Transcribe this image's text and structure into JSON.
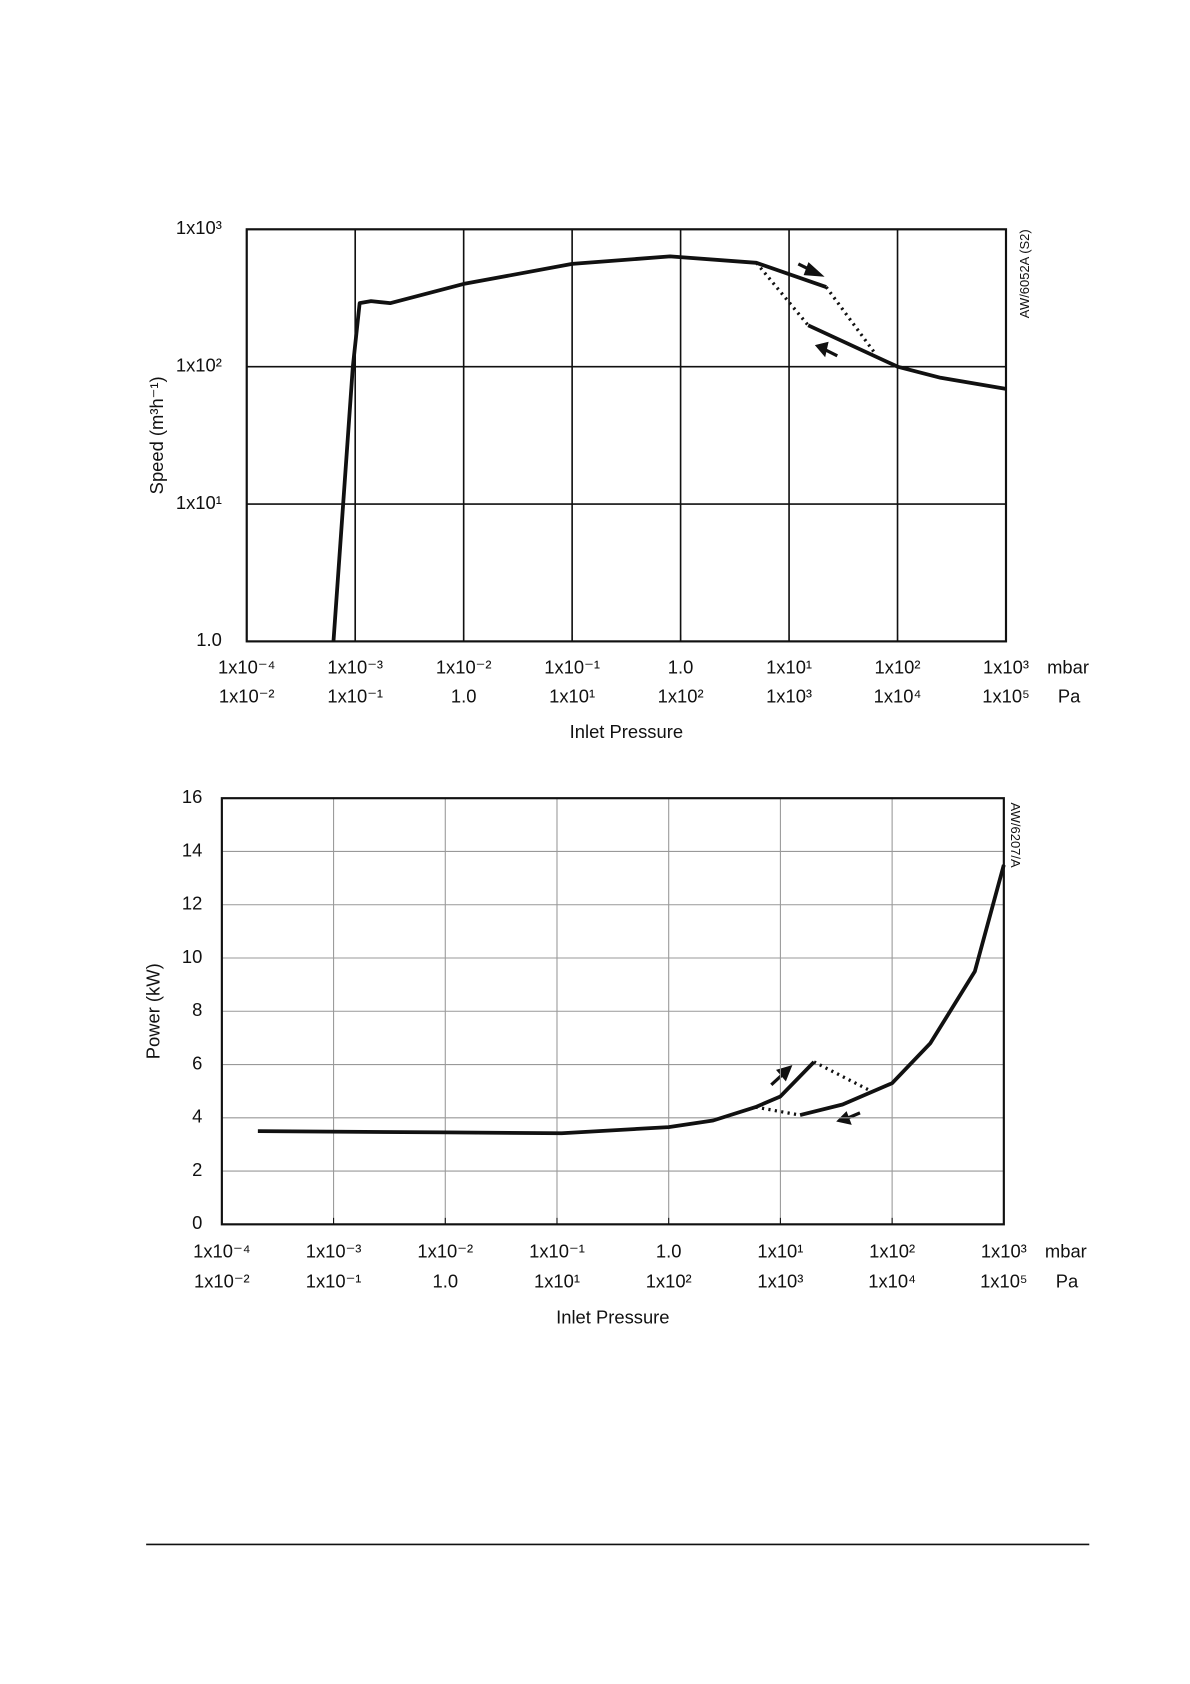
{
  "chart_data": [
    {
      "type": "line",
      "log_x": true,
      "log_y": true,
      "grid": true,
      "grid_color": "#111",
      "ylabel": "Speed (m³h⁻¹)",
      "xlabel": "Inlet Pressure",
      "annotation": "AW/6052A (S2)",
      "x_unit": "mbar",
      "x2_unit": "Pa",
      "xlim": [
        0.0001,
        1000
      ],
      "x2lim": [
        0.01,
        100000
      ],
      "ylim": [
        1,
        1000
      ],
      "xticks": [
        {
          "value": 0.0001,
          "label": "1x10⁻⁴"
        },
        {
          "value": 0.001,
          "label": "1x10⁻³"
        },
        {
          "value": 0.01,
          "label": "1x10⁻²"
        },
        {
          "value": 0.1,
          "label": "1x10⁻¹"
        },
        {
          "value": 1,
          "label": "1.0"
        },
        {
          "value": 10,
          "label": "1x10¹"
        },
        {
          "value": 100,
          "label": "1x10²"
        },
        {
          "value": 1000,
          "label": "1x10³"
        }
      ],
      "x2ticks": [
        {
          "value": 0.01,
          "label": "1x10⁻²"
        },
        {
          "value": 0.1,
          "label": "1x10⁻¹"
        },
        {
          "value": 1,
          "label": "1.0"
        },
        {
          "value": 10,
          "label": "1x10¹"
        },
        {
          "value": 100,
          "label": "1x10²"
        },
        {
          "value": 1000,
          "label": "1x10³"
        },
        {
          "value": 10000,
          "label": "1x10⁴"
        },
        {
          "value": 100000,
          "label": "1x10⁵"
        }
      ],
      "yticks": [
        {
          "value": 1,
          "label": "1.0"
        },
        {
          "value": 10,
          "label": "1x10¹"
        },
        {
          "value": 100,
          "label": "1x10²"
        },
        {
          "value": 1000,
          "label": "1x10³"
        }
      ],
      "series": [
        {
          "style": "solid",
          "color": "#111",
          "x": [
            0.00063,
            0.00095,
            0.0011,
            0.0014,
            0.0021,
            0.01,
            0.1,
            0.8,
            5,
            22
          ],
          "values": [
            1,
            100,
            290,
            300,
            290,
            400,
            560,
            635,
            570,
            380
          ]
        },
        {
          "style": "solid",
          "color": "#111",
          "x": [
            15,
            100,
            250,
            1000
          ],
          "values": [
            200,
            100,
            83,
            69
          ]
        },
        {
          "style": "dotted",
          "color": "#111",
          "x": [
            5,
            15
          ],
          "values": [
            570,
            200
          ]
        },
        {
          "style": "dotted",
          "color": "#111",
          "x": [
            22,
            62
          ],
          "values": [
            380,
            125
          ]
        }
      ]
    },
    {
      "type": "line",
      "log_x": true,
      "log_y": false,
      "grid": true,
      "grid_color": "#999",
      "ylabel": "Power (kW)",
      "xlabel": "Inlet Pressure",
      "annotation": "AW/6207/A",
      "x_unit": "mbar",
      "x2_unit": "Pa",
      "xlim": [
        0.0001,
        1000
      ],
      "x2lim": [
        0.01,
        100000
      ],
      "ylim": [
        0,
        16
      ],
      "xticks": [
        {
          "value": 0.0001,
          "label": "1x10⁻⁴"
        },
        {
          "value": 0.001,
          "label": "1x10⁻³"
        },
        {
          "value": 0.01,
          "label": "1x10⁻²"
        },
        {
          "value": 0.1,
          "label": "1x10⁻¹"
        },
        {
          "value": 1,
          "label": "1.0"
        },
        {
          "value": 10,
          "label": "1x10¹"
        },
        {
          "value": 100,
          "label": "1x10²"
        },
        {
          "value": 1000,
          "label": "1x10³"
        }
      ],
      "x2ticks": [
        {
          "value": 0.01,
          "label": "1x10⁻²"
        },
        {
          "value": 0.1,
          "label": "1x10⁻¹"
        },
        {
          "value": 1,
          "label": "1.0"
        },
        {
          "value": 10,
          "label": "1x10¹"
        },
        {
          "value": 100,
          "label": "1x10²"
        },
        {
          "value": 1000,
          "label": "1x10³"
        },
        {
          "value": 10000,
          "label": "1x10⁴"
        },
        {
          "value": 100000,
          "label": "1x10⁵"
        }
      ],
      "yticks": [
        0,
        2,
        4,
        6,
        8,
        10,
        12,
        14,
        16
      ],
      "series": [
        {
          "style": "solid",
          "color": "#111",
          "x": [
            0.00021,
            0.01,
            0.11,
            1,
            2.5,
            6,
            10,
            20
          ],
          "values": [
            3.5,
            3.45,
            3.42,
            3.65,
            3.9,
            4.4,
            4.8,
            6.1
          ]
        },
        {
          "style": "solid",
          "color": "#111",
          "x": [
            15,
            36,
            100,
            220,
            550,
            1000
          ],
          "values": [
            4.1,
            4.5,
            5.3,
            6.8,
            9.5,
            13.5
          ]
        },
        {
          "style": "dotted",
          "color": "#111",
          "x": [
            6,
            15
          ],
          "values": [
            4.4,
            4.1
          ]
        },
        {
          "style": "dotted",
          "color": "#111",
          "x": [
            20,
            65
          ],
          "values": [
            6.1,
            5.0
          ]
        }
      ]
    }
  ]
}
